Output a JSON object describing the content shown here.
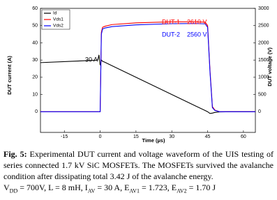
{
  "chart_data": {
    "type": "line",
    "xlabel": "Time (µs)",
    "ylabel": "DUT current (A)",
    "y2label": "DUT voltage (V)",
    "x": [
      -25,
      -10,
      -2,
      -1,
      -0.5,
      0,
      0.5,
      1,
      2,
      5,
      15,
      30,
      40,
      44,
      45,
      46,
      47,
      48,
      50,
      55,
      65
    ],
    "series": [
      {
        "name": "Id",
        "color": "#000000",
        "values": [
          28.5,
          29.4,
          29.9,
          30,
          33,
          27,
          30,
          29.3,
          28.7,
          26.7,
          20,
          10,
          3.3,
          0.7,
          0,
          -1,
          -0.8,
          -0.4,
          -0.1,
          0,
          0
        ]
      },
      {
        "name": "Vds1",
        "color": "#ff0000",
        "axis": "y2",
        "values": [
          0,
          0,
          0,
          0,
          0,
          0,
          2300,
          2450,
          2480,
          2530,
          2580,
          2610,
          2610,
          2600,
          2500,
          1200,
          150,
          50,
          0,
          0,
          0
        ]
      },
      {
        "name": "Vds2",
        "color": "#0000ff",
        "axis": "y2",
        "values": [
          0,
          0,
          0,
          0,
          0,
          0,
          2250,
          2400,
          2430,
          2470,
          2520,
          2555,
          2560,
          2550,
          2450,
          1150,
          120,
          40,
          0,
          0,
          0
        ]
      }
    ],
    "xlim": [
      -25,
      65
    ],
    "xticks": [
      -15,
      0,
      15,
      30,
      45,
      60
    ],
    "ylim": [
      -12,
      60
    ],
    "yticks": [
      0,
      10,
      20,
      30,
      40,
      50,
      60
    ],
    "y2lim": [
      -600,
      3000
    ],
    "y2ticks": [
      0,
      500,
      1000,
      1500,
      2000,
      2500,
      3000
    ],
    "legend": "top-left",
    "annotations": [
      {
        "text": "30 A",
        "color": "#000000"
      },
      {
        "text": "DUT-1",
        "color": "#ff0000"
      },
      {
        "text": "2610 V",
        "color": "#ff0000"
      },
      {
        "text": "DUT-2",
        "color": "#0000ff"
      },
      {
        "text": "2560 V",
        "color": "#0000ff"
      }
    ]
  },
  "caption": {
    "label": "Fig. 5:",
    "text": "Experimental DUT current and voltage waveform of the UIS testing of series connected 1.7 kV SiC MOSFETs. The MOSFETs survived the avalanche condition after dissipating total 3.42 J of the avalanche energy.",
    "params": [
      "V",
      "DD",
      " = 700V, L = 8 mH, I",
      "AV",
      " = 30 A, E",
      "AV1",
      " = 1.723, E",
      "AV2",
      " = 1.70 J"
    ]
  }
}
